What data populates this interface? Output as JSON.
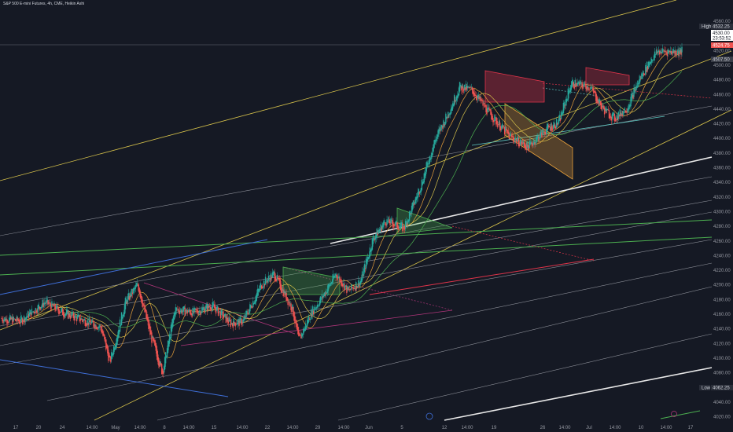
{
  "header": {
    "title": "S&P 500 E-mini Futures, 4h, CME, Heikin Ashi"
  },
  "colors": {
    "background": "#151924",
    "up": "#26a69a",
    "down": "#ef5350",
    "yellow_line": "#d4c04a",
    "white_line": "#e8e8e8",
    "gray_line": "#8a8d96",
    "green_line": "#4caf50",
    "blue_line": "#3f6fd8",
    "red_line": "#e0344a",
    "magenta_line": "#b0357a",
    "teal_line": "#5ec7c0",
    "orange_box": "#e8a03a"
  },
  "axis": {
    "y_ticks": [
      "4560.00",
      "4540.00",
      "4520.00",
      "4500.00",
      "4480.00",
      "4460.00",
      "4440.00",
      "4420.00",
      "4400.00",
      "4380.00",
      "4360.00",
      "4340.00",
      "4320.00",
      "4300.00",
      "4280.00",
      "4260.00",
      "4240.00",
      "4220.00",
      "4200.00",
      "4180.00",
      "4160.00",
      "4140.00",
      "4120.00",
      "4100.00",
      "4080.00",
      "4060.00",
      "4040.00",
      "4020.00"
    ],
    "x_ticks": [
      "17",
      "20",
      "24",
      "14:00",
      "May",
      "14:00",
      "8",
      "14:00",
      "15",
      "14:00",
      "22",
      "14:00",
      "29",
      "14:00",
      "Jun",
      "5",
      "12",
      "14:00",
      "19",
      "26",
      "14:00",
      "Jul",
      "14:00",
      "10",
      "14:00",
      "17"
    ]
  },
  "price_badges": {
    "high_label": "High",
    "high_value": "4532.25",
    "b1": "4530.00",
    "b2": "23:53:52",
    "last": "4524.75",
    "ma": "4507.50",
    "low_label": "Low",
    "low_value": "4062.25"
  },
  "chart_data": {
    "type": "candlestick",
    "title": "S&P 500 E-mini Futures, 4h, CME, Heikin Ashi",
    "ylim": [
      4010,
      4575
    ],
    "xlim": [
      0,
      220
    ],
    "y_axis_side": "right",
    "grid": false,
    "candle_count": 220,
    "high": 4532.25,
    "low": 4062.25,
    "last": 4524.75,
    "price_path": [
      [
        0,
        4152
      ],
      [
        6,
        4148
      ],
      [
        14,
        4175
      ],
      [
        20,
        4160
      ],
      [
        26,
        4150
      ],
      [
        32,
        4140
      ],
      [
        35,
        4090
      ],
      [
        40,
        4175
      ],
      [
        44,
        4200
      ],
      [
        48,
        4130
      ],
      [
        52,
        4075
      ],
      [
        56,
        4165
      ],
      [
        62,
        4160
      ],
      [
        68,
        4170
      ],
      [
        74,
        4145
      ],
      [
        78,
        4148
      ],
      [
        84,
        4200
      ],
      [
        88,
        4215
      ],
      [
        94,
        4165
      ],
      [
        96,
        4120
      ],
      [
        100,
        4160
      ],
      [
        104,
        4185
      ],
      [
        108,
        4215
      ],
      [
        112,
        4190
      ],
      [
        116,
        4205
      ],
      [
        120,
        4265
      ],
      [
        124,
        4290
      ],
      [
        130,
        4280
      ],
      [
        135,
        4335
      ],
      [
        140,
        4405
      ],
      [
        144,
        4440
      ],
      [
        148,
        4480
      ],
      [
        152,
        4475
      ],
      [
        158,
        4440
      ],
      [
        164,
        4410
      ],
      [
        170,
        4395
      ],
      [
        176,
        4420
      ],
      [
        180,
        4430
      ],
      [
        184,
        4485
      ],
      [
        190,
        4480
      ],
      [
        194,
        4450
      ],
      [
        198,
        4435
      ],
      [
        202,
        4450
      ],
      [
        206,
        4490
      ],
      [
        210,
        4520
      ],
      [
        212,
        4530
      ]
    ]
  }
}
